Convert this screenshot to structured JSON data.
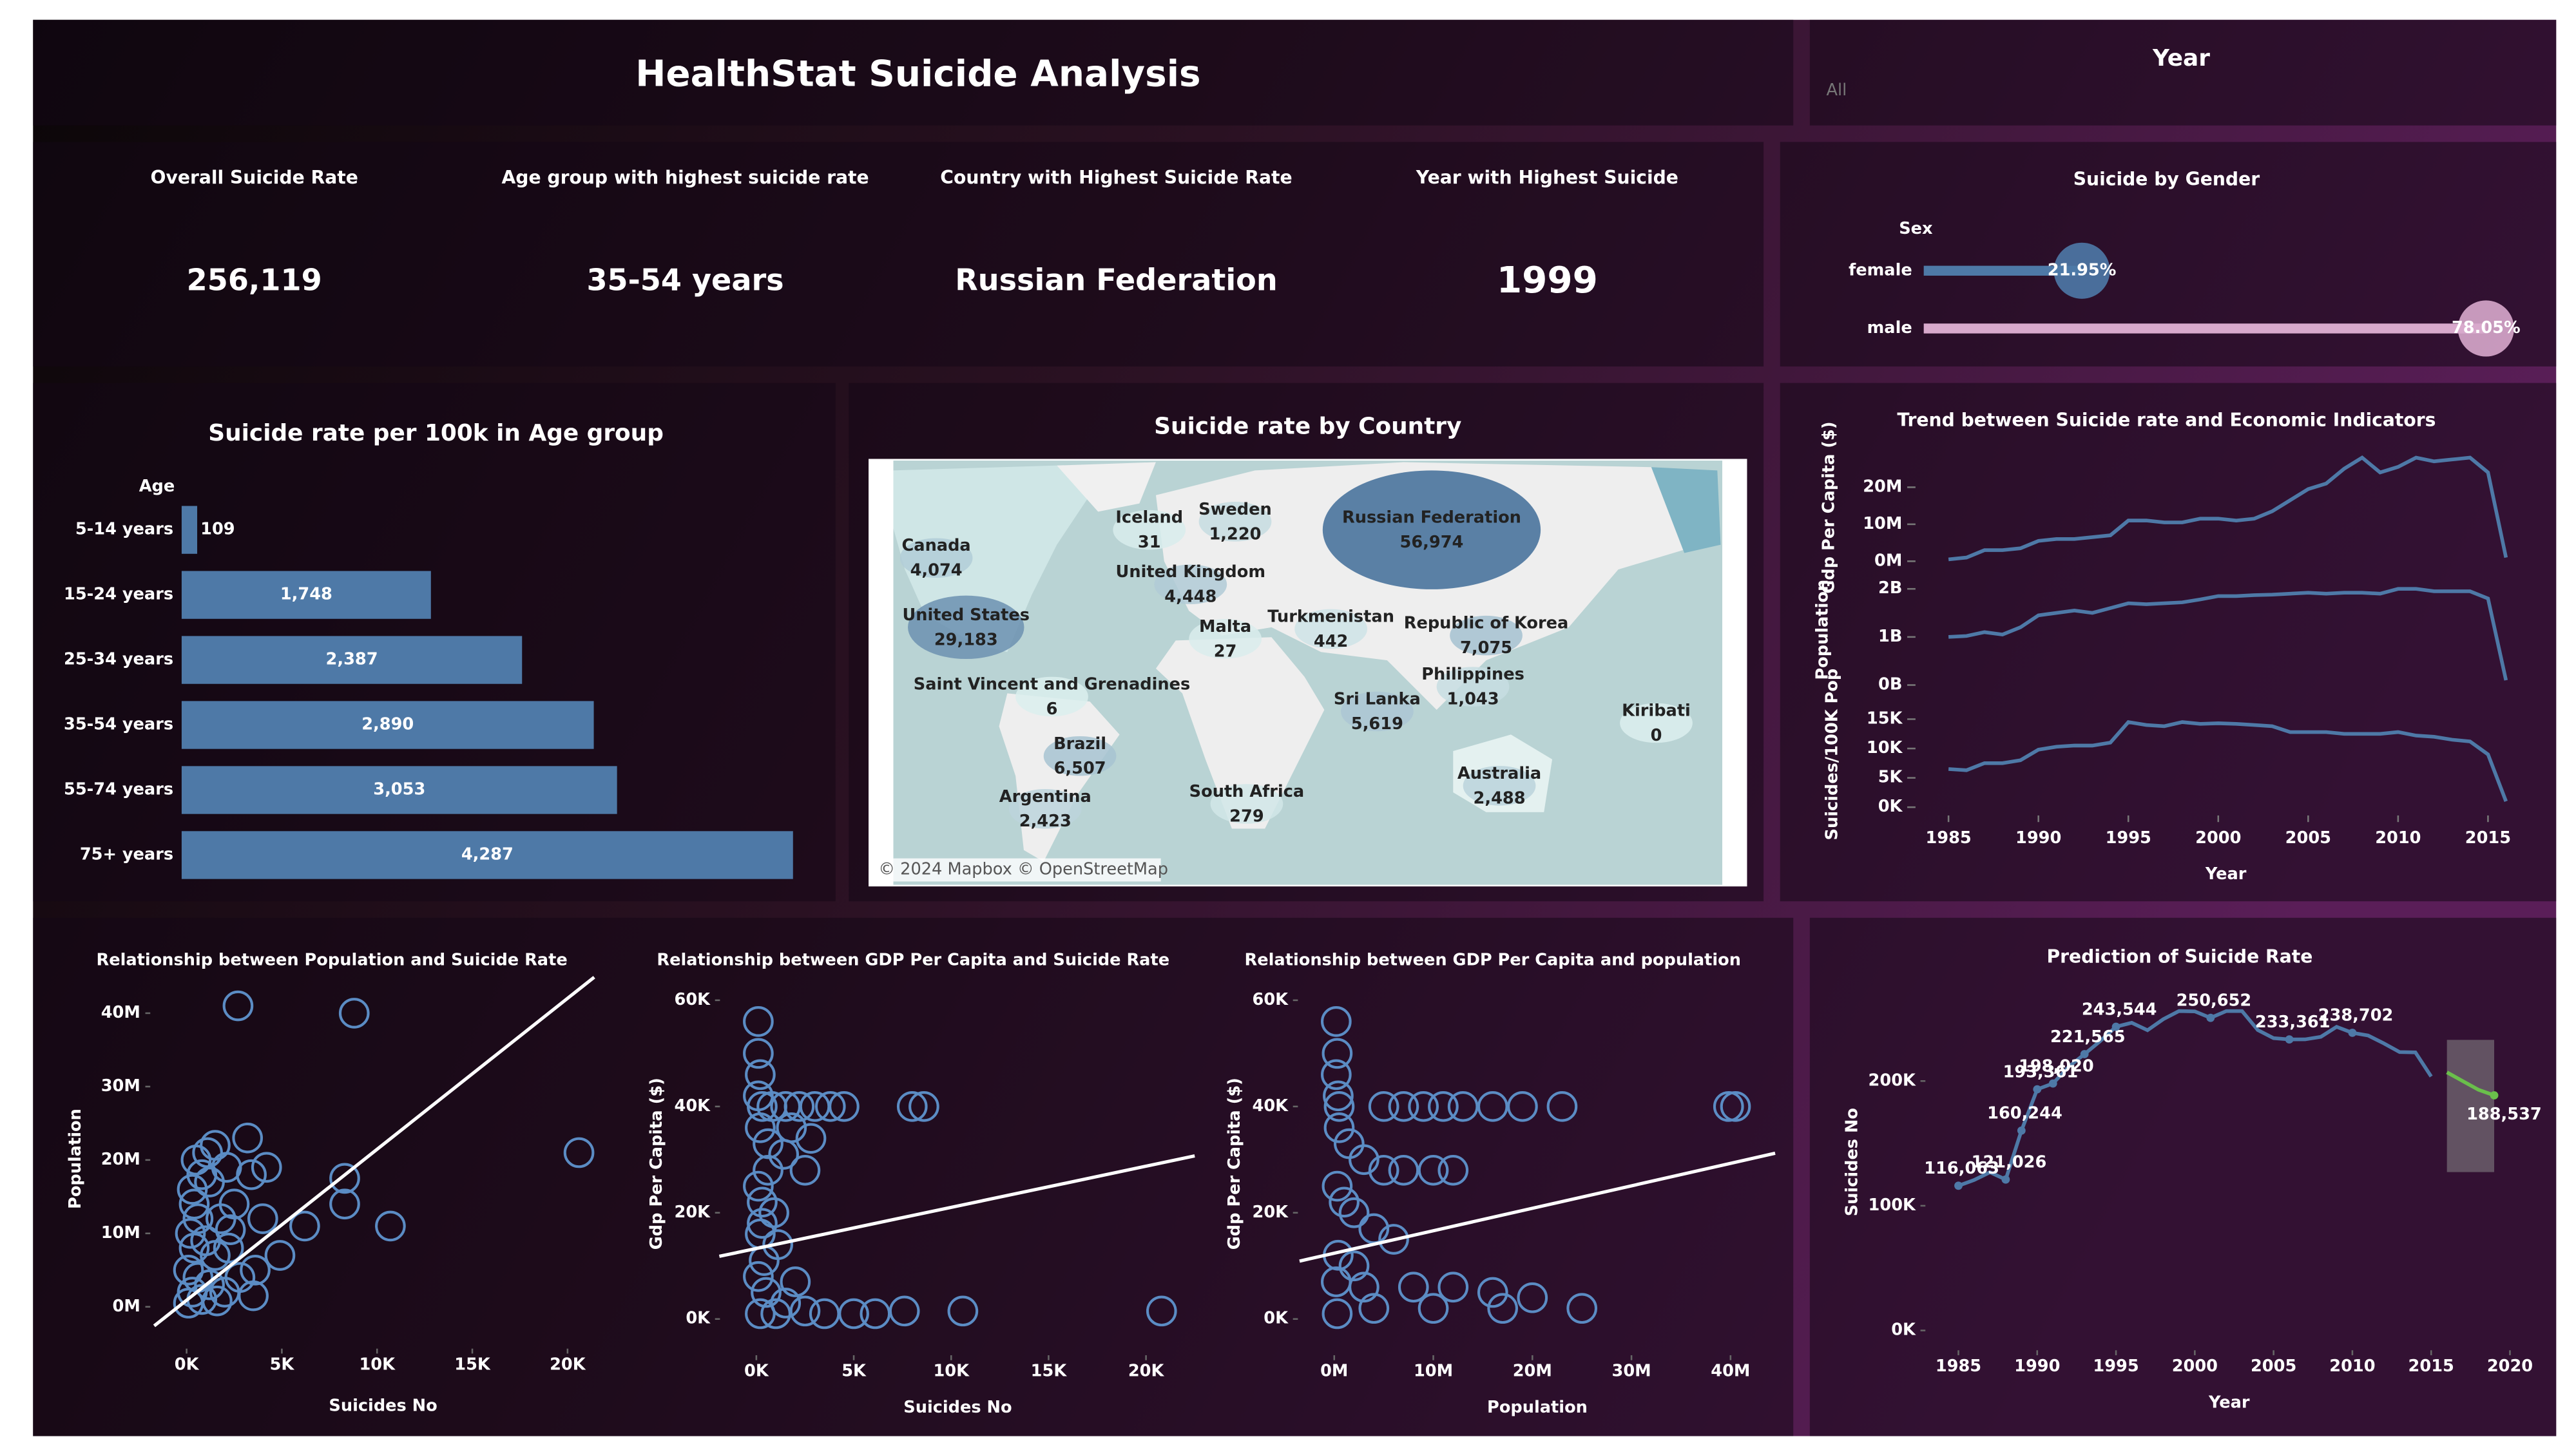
{
  "title": "HealthStat Suicide Analysis",
  "year_filter": {
    "label": "Year",
    "value": "All"
  },
  "kpis": [
    {
      "label": "Overall Suicide Rate",
      "value": "256,119"
    },
    {
      "label": "Age group with highest suicide rate",
      "value": "35-54 years"
    },
    {
      "label": "Country with Highest Suicide Rate",
      "value": "Russian Federation"
    },
    {
      "label": "Year with Highest Suicide",
      "value": "1999"
    }
  ],
  "chart_data": [
    {
      "type": "dotbar",
      "title": "Suicide by Gender",
      "axis_label": "Sex",
      "categories": [
        "female",
        "male"
      ],
      "values": [
        21.95,
        78.05
      ],
      "value_labels": [
        "21.95%",
        "78.05%"
      ],
      "colors": [
        "#4e79a7",
        "#d8a9cc"
      ],
      "xlim": [
        0,
        80
      ]
    },
    {
      "type": "bar",
      "orientation": "horizontal",
      "title": "Suicide rate per 100k in Age group",
      "axis_label": "Age",
      "categories": [
        "5-14 years",
        "15-24 years",
        "25-34 years",
        "35-54 years",
        "55-74 years",
        "75+ years"
      ],
      "values": [
        109,
        1748,
        2387,
        2890,
        3053,
        4287
      ],
      "value_labels": [
        "109",
        "1,748",
        "2,387",
        "2,890",
        "3,053",
        "4,287"
      ],
      "color": "#4e79a7",
      "xlim": [
        0,
        4400
      ]
    },
    {
      "type": "map",
      "title": "Suicide rate by Country",
      "countries": [
        "Canada",
        "Iceland",
        "Sweden",
        "Russian Federation",
        "United Kingdom",
        "United States",
        "Malta",
        "Turkmenistan",
        "Republic of Korea",
        "Philippines",
        "Saint Vincent and Grenadines",
        "Sri Lanka",
        "Kiribati",
        "Brazil",
        "Argentina",
        "South Africa",
        "Australia"
      ],
      "values": [
        4074,
        31,
        1220,
        56974,
        4448,
        29183,
        27,
        442,
        7075,
        1043,
        6,
        5619,
        0,
        6507,
        2423,
        279,
        2488
      ],
      "value_labels": [
        "4,074",
        "31",
        "1,220",
        "56,974",
        "4,448",
        "29,183",
        "27",
        "442",
        "7,075",
        "1,043",
        "6",
        "5,619",
        "0",
        "6,507",
        "2,423",
        "279",
        "2,488"
      ],
      "colors": [
        "#dcefee",
        "#3f6c98"
      ],
      "attribution": "© 2024 Mapbox © OpenStreetMap"
    },
    {
      "type": "line_panels",
      "title": "Trend between Suicide rate and Economic Indicators",
      "x_label": "Year",
      "x": [
        1985,
        1986,
        1987,
        1988,
        1989,
        1990,
        1991,
        1992,
        1993,
        1994,
        1995,
        1996,
        1997,
        1998,
        1999,
        2000,
        2001,
        2002,
        2003,
        2004,
        2005,
        2006,
        2007,
        2008,
        2009,
        2010,
        2011,
        2012,
        2013,
        2014,
        2015,
        2016
      ],
      "xlim": [
        1985,
        2016
      ],
      "xticks": [
        1985,
        1990,
        1995,
        2000,
        2005,
        2010,
        2015
      ],
      "series": [
        {
          "name": "Gdp Per Capita ($)",
          "color": "#4e79a7",
          "values": [
            500000,
            1000000,
            3000000,
            3000000,
            3500000,
            5500000,
            6000000,
            6000000,
            6500000,
            7000000,
            11000000,
            11000000,
            10500000,
            10500000,
            11500000,
            11500000,
            11000000,
            11500000,
            13500000,
            16500000,
            19500000,
            21000000,
            25000000,
            28000000,
            24000000,
            25500000,
            28000000,
            27000000,
            27500000,
            28000000,
            24000000,
            1000000
          ],
          "ylim": [
            0,
            29000000
          ],
          "yticks": [
            {
              "value": 0,
              "label": "0M"
            },
            {
              "value": 10000000,
              "label": "10M"
            },
            {
              "value": 20000000,
              "label": "20M"
            }
          ]
        },
        {
          "name": "Population",
          "color": "#4e79a7",
          "values": [
            1000000000,
            1020000000,
            1100000000,
            1050000000,
            1200000000,
            1450000000,
            1500000000,
            1550000000,
            1500000000,
            1600000000,
            1700000000,
            1680000000,
            1700000000,
            1720000000,
            1780000000,
            1850000000,
            1850000000,
            1870000000,
            1880000000,
            1900000000,
            1920000000,
            1900000000,
            1920000000,
            1920000000,
            1900000000,
            2000000000,
            2000000000,
            1950000000,
            1950000000,
            1950000000,
            1800000000,
            100000000
          ],
          "ylim": [
            0,
            2300000000
          ],
          "yticks": [
            {
              "value": 0,
              "label": "0B"
            },
            {
              "value": 1000000000,
              "label": "1B"
            },
            {
              "value": 2000000000,
              "label": "2B"
            }
          ]
        },
        {
          "name": "Suicides/100K Pop",
          "color": "#4e79a7",
          "values": [
            6500,
            6300,
            7500,
            7500,
            8000,
            9800,
            10300,
            10500,
            10500,
            11000,
            14500,
            14000,
            13800,
            14500,
            14200,
            14300,
            14200,
            14000,
            13800,
            12800,
            12800,
            12800,
            12500,
            12500,
            12500,
            12800,
            12200,
            12000,
            11500,
            11200,
            9000,
            1000
          ],
          "ylim": [
            0,
            18000
          ],
          "yticks": [
            {
              "value": 0,
              "label": "0K"
            },
            {
              "value": 5000,
              "label": "5K"
            },
            {
              "value": 10000,
              "label": "10K"
            },
            {
              "value": 15000,
              "label": "15K"
            }
          ]
        }
      ]
    },
    {
      "type": "scatter",
      "title": "Relationship between Population and Suicide Rate",
      "x_label": "Suicides No",
      "y_label": "Population",
      "color": "#5b8cc4",
      "x": [
        2700,
        8800,
        20600,
        8300,
        10700,
        6200,
        8300,
        4900,
        3600,
        3200,
        1500,
        500,
        800,
        300,
        1200,
        2100,
        3400,
        4200,
        2500,
        1800,
        600,
        200,
        400,
        1000,
        1500,
        2200,
        100,
        600,
        1200,
        300,
        2000,
        100,
        800,
        1600,
        3500,
        2800,
        400,
        1100,
        4000,
        2300
      ],
      "y": [
        41000000,
        40000000,
        21000000,
        17500000,
        11000000,
        11000000,
        14000000,
        7000000,
        5000000,
        23000000,
        22000000,
        20000000,
        18000000,
        16000000,
        17000000,
        19000000,
        18000000,
        19000000,
        14000000,
        12000000,
        12000000,
        10000000,
        8000000,
        9000000,
        7000000,
        8000000,
        5000000,
        4000000,
        3000000,
        2000000,
        2000000,
        500000,
        1000000,
        800000,
        1500000,
        4000000,
        14000000,
        21000000,
        12000000,
        10500000
      ],
      "trend_line": {
        "x": [
          -1700,
          21400
        ],
        "y": [
          -2600000,
          44900000
        ]
      },
      "xlim": [
        -1500,
        21500
      ],
      "ylim": [
        -3000000,
        44000000
      ],
      "xticks": [
        {
          "value": 0,
          "label": "0K"
        },
        {
          "value": 5000,
          "label": "5K"
        },
        {
          "value": 10000,
          "label": "10K"
        },
        {
          "value": 15000,
          "label": "15K"
        },
        {
          "value": 20000,
          "label": "20K"
        }
      ],
      "yticks": [
        {
          "value": 0,
          "label": "0M"
        },
        {
          "value": 10000000,
          "label": "10M"
        },
        {
          "value": 20000000,
          "label": "20M"
        },
        {
          "value": 30000000,
          "label": "30M"
        },
        {
          "value": 40000000,
          "label": "40M"
        }
      ]
    },
    {
      "type": "scatter",
      "title": "Relationship between GDP Per Capita and Suicide Rate",
      "x_label": "Suicides No",
      "y_label": "Gdp Per Capita ($)",
      "color": "#5b8cc4",
      "x": [
        100,
        100,
        200,
        100,
        300,
        800,
        1500,
        2200,
        3000,
        3800,
        4500,
        8000,
        8600,
        200,
        600,
        1400,
        2500,
        100,
        300,
        900,
        200,
        1100,
        400,
        100,
        2000,
        500,
        1500,
        200,
        1000,
        2500,
        3500,
        5000,
        6100,
        7600,
        10600,
        20800,
        600,
        1800,
        2800,
        300
      ],
      "y": [
        56000,
        50000,
        46000,
        42000,
        40000,
        40000,
        40000,
        40000,
        40000,
        40000,
        40000,
        40000,
        40000,
        36000,
        33000,
        31000,
        28000,
        25000,
        22000,
        20000,
        16000,
        14000,
        11000,
        8000,
        7000,
        5000,
        3000,
        1000,
        1000,
        1500,
        1000,
        1000,
        1000,
        1500,
        1500,
        1500,
        28000,
        36000,
        34000,
        18000
      ],
      "trend_line": {
        "x": [
          -1900,
          22500
        ],
        "y": [
          11800,
          30700
        ]
      },
      "xlim": [
        -1800,
        22500
      ],
      "ylim": [
        -3000,
        63000
      ],
      "xticks": [
        {
          "value": 0,
          "label": "0K"
        },
        {
          "value": 5000,
          "label": "5K"
        },
        {
          "value": 10000,
          "label": "10K"
        },
        {
          "value": 15000,
          "label": "15K"
        },
        {
          "value": 20000,
          "label": "20K"
        }
      ],
      "yticks": [
        {
          "value": 0,
          "label": "0K"
        },
        {
          "value": 20000,
          "label": "20K"
        },
        {
          "value": 40000,
          "label": "40K"
        },
        {
          "value": 60000,
          "label": "60K"
        }
      ]
    },
    {
      "type": "scatter",
      "title": "Relationship between GDP Per Capita and population",
      "x_label": "Population",
      "y_label": "Gdp Per Capita ($)",
      "color": "#5b8cc4",
      "x": [
        200000,
        300000,
        200000,
        400000,
        500000,
        5000000,
        7000000,
        9000000,
        11000000,
        13000000,
        16000000,
        19000000,
        23000000,
        39800000,
        40500000,
        500000,
        1500000,
        3000000,
        5000000,
        7000000,
        10000000,
        12000000,
        300000,
        1000000,
        2000000,
        4000000,
        6000000,
        400000,
        2000000,
        200000,
        3000000,
        8000000,
        12000000,
        16000000,
        20000000,
        25000000,
        17000000,
        10000000,
        4000000,
        300000
      ],
      "y": [
        56000,
        50000,
        46000,
        42000,
        40000,
        40000,
        40000,
        40000,
        40000,
        40000,
        40000,
        40000,
        40000,
        40000,
        40000,
        36000,
        33000,
        30000,
        28000,
        28000,
        28000,
        28000,
        25000,
        22000,
        20000,
        17000,
        15000,
        12000,
        10000,
        7000,
        6000,
        6000,
        6000,
        5000,
        4000,
        2000,
        2000,
        2000,
        2000,
        1000
      ],
      "trend_line": {
        "x": [
          -3500000,
          44500000
        ],
        "y": [
          10900,
          31200
        ]
      },
      "xlim": [
        -3500000,
        44500000
      ],
      "ylim": [
        -3000,
        63000
      ],
      "xticks": [
        {
          "value": 0,
          "label": "0M"
        },
        {
          "value": 10000000,
          "label": "10M"
        },
        {
          "value": 20000000,
          "label": "20M"
        },
        {
          "value": 30000000,
          "label": "30M"
        },
        {
          "value": 40000000,
          "label": "40M"
        }
      ],
      "yticks": [
        {
          "value": 0,
          "label": "0K"
        },
        {
          "value": 20000,
          "label": "20K"
        },
        {
          "value": 40000,
          "label": "40K"
        },
        {
          "value": 60000,
          "label": "60K"
        }
      ]
    },
    {
      "type": "line",
      "title": "Prediction of Suicide Rate",
      "x_label": "Year",
      "y_label": "Suicides No",
      "xlim": [
        1985,
        2020
      ],
      "ylim": [
        0,
        270000
      ],
      "xticks": [
        1985,
        1990,
        1995,
        2000,
        2005,
        2010,
        2015,
        2020
      ],
      "yticks": [
        {
          "value": 0,
          "label": "0K"
        },
        {
          "value": 100000,
          "label": "100K"
        },
        {
          "value": 200000,
          "label": "200K"
        }
      ],
      "series": [
        {
          "color": "#4e79a7",
          "x": [
            1985,
            1986,
            1987,
            1988,
            1989,
            1990,
            1991,
            1992,
            1993,
            1994,
            1995,
            1996,
            1997,
            1998,
            1999,
            2000,
            2001,
            2002,
            2003,
            2004,
            2005,
            2006,
            2007,
            2008,
            2009,
            2010,
            2011,
            2012,
            2013,
            2014,
            2015
          ],
          "values": [
            116063,
            120670,
            126842,
            121026,
            160244,
            193361,
            198020,
            211473,
            221565,
            232063,
            243544,
            246725,
            240745,
            249591,
            256119,
            255832,
            250652,
            256095,
            256079,
            240861,
            234375,
            233361,
            233408,
            235447,
            243487,
            238702,
            236484,
            230160,
            223199,
            222984,
            203640
          ],
          "value_labels": [
            "116,063",
            null,
            null,
            "121,026",
            "160,244",
            "193,361",
            "198,020",
            null,
            "221,565",
            null,
            "243,544",
            null,
            null,
            null,
            null,
            null,
            "250,652",
            null,
            null,
            null,
            null,
            "233,361",
            null,
            null,
            null,
            "238,702",
            null,
            null,
            null,
            null,
            null
          ]
        },
        {
          "color": "#6abf4b",
          "x": [
            2016,
            2017,
            2018,
            2019
          ],
          "values": [
            207000,
            200000,
            193000,
            188537
          ],
          "value_labels": [
            null,
            null,
            null,
            "188,537"
          ],
          "lower": [
            127000,
            127000,
            127000,
            127000
          ],
          "upper": [
            233000,
            233000,
            233000,
            233000
          ]
        }
      ]
    }
  ]
}
